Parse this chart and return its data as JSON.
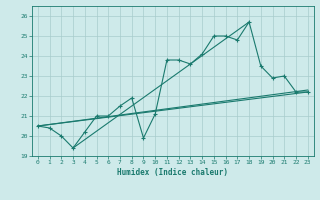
{
  "xlabel": "Humidex (Indice chaleur)",
  "xlim": [
    -0.5,
    23.5
  ],
  "ylim": [
    19,
    26.5
  ],
  "yticks": [
    19,
    20,
    21,
    22,
    23,
    24,
    25,
    26
  ],
  "xticks": [
    0,
    1,
    2,
    3,
    4,
    5,
    6,
    7,
    8,
    9,
    10,
    11,
    12,
    13,
    14,
    15,
    16,
    17,
    18,
    19,
    20,
    21,
    22,
    23
  ],
  "bg_color": "#ceeaea",
  "grid_color": "#a8cccc",
  "line_color": "#1a7a6e",
  "line1_x": [
    0,
    1,
    2,
    3,
    4,
    5,
    6,
    7,
    8,
    9,
    10,
    11,
    12,
    13,
    14,
    15,
    16,
    17,
    18,
    19,
    20,
    21,
    22,
    23
  ],
  "line1_y": [
    20.5,
    20.4,
    20.0,
    19.4,
    20.2,
    21.0,
    21.0,
    21.5,
    21.9,
    19.9,
    21.1,
    23.8,
    23.8,
    23.6,
    24.1,
    25.0,
    25.0,
    24.8,
    25.7,
    23.5,
    22.9,
    23.0,
    22.2,
    22.2
  ],
  "line2_x": [
    0,
    23
  ],
  "line2_y": [
    20.5,
    22.2
  ],
  "line3_x": [
    0,
    23
  ],
  "line3_y": [
    20.5,
    22.3
  ],
  "line4_x": [
    3,
    18
  ],
  "line4_y": [
    19.4,
    25.7
  ]
}
